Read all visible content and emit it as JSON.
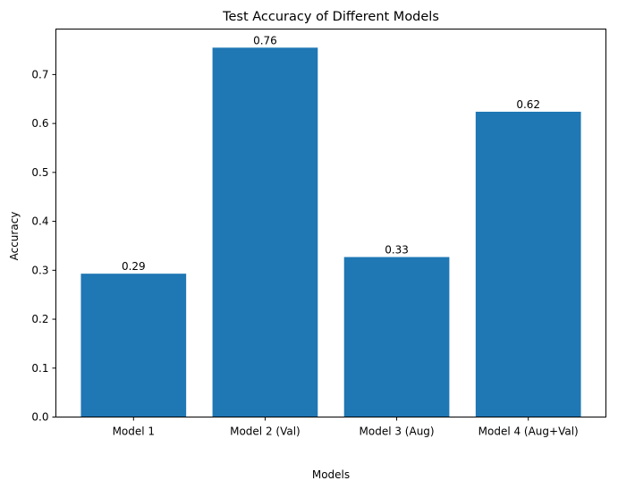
{
  "chart_data": {
    "type": "bar",
    "title": "Test Accuracy of Different Models",
    "xlabel": "Models",
    "ylabel": "Accuracy",
    "categories": [
      "Model 1",
      "Model 2 (Val)",
      "Model 3 (Aug)",
      "Model 4 (Aug+Val)"
    ],
    "values": [
      0.293,
      0.755,
      0.327,
      0.624
    ],
    "data_labels": [
      "0.29",
      "0.76",
      "0.33",
      "0.62"
    ],
    "ylim": [
      0,
      0.793
    ],
    "yticks": [
      0.0,
      0.1,
      0.2,
      0.3,
      0.4,
      0.5,
      0.6,
      0.7
    ],
    "ytick_labels": [
      "0.0",
      "0.1",
      "0.2",
      "0.3",
      "0.4",
      "0.5",
      "0.6",
      "0.7"
    ],
    "bar_color": "#1f77b4",
    "grid": false,
    "legend": "none"
  }
}
